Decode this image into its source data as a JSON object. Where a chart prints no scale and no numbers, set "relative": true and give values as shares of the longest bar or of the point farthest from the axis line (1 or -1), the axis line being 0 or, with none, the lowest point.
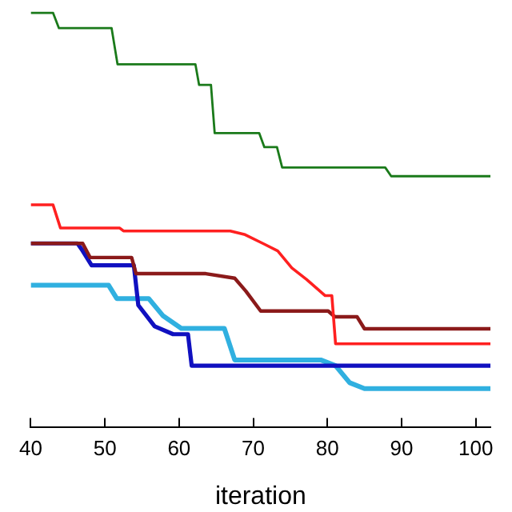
{
  "chart_data": {
    "type": "line",
    "xlabel": "iteration",
    "relative": true,
    "xlim": [
      40,
      102
    ],
    "xticks": [
      40,
      50,
      60,
      70,
      80,
      90,
      100
    ],
    "grid": false,
    "legend": false,
    "marker": "none",
    "line_style": "solid",
    "series": [
      {
        "color": "#1a7a1a",
        "x": [
          40,
          43,
          43.8,
          50.9,
          51.7,
          62.2,
          62.7,
          64.3,
          64.8,
          70.8,
          71.5,
          73.2,
          73.9,
          87.8,
          88.6,
          102
        ],
        "values": [
          1,
          1,
          0.963,
          0.963,
          0.876,
          0.876,
          0.826,
          0.826,
          0.71,
          0.71,
          0.676,
          0.676,
          0.627,
          0.627,
          0.606,
          0.606
        ]
      },
      {
        "color": "#ff2020",
        "x": [
          40,
          43,
          44,
          52,
          52.5,
          66.9,
          68.9,
          71.4,
          73.3,
          75.2,
          77.2,
          79.7,
          80.6,
          81.1,
          102
        ],
        "values": [
          0.537,
          0.537,
          0.481,
          0.481,
          0.474,
          0.474,
          0.465,
          0.443,
          0.426,
          0.385,
          0.357,
          0.318,
          0.318,
          0.202,
          0.202
        ]
      },
      {
        "color": "#8b1a1a",
        "x": [
          40,
          47,
          48,
          53.6,
          54.2,
          63.6,
          67.5,
          69,
          71,
          80.1,
          81,
          84,
          85,
          102
        ],
        "values": [
          0.444,
          0.444,
          0.41,
          0.41,
          0.371,
          0.371,
          0.36,
          0.329,
          0.281,
          0.281,
          0.267,
          0.267,
          0.238,
          0.238
        ]
      },
      {
        "color": "#1010c0",
        "x": [
          40,
          46.3,
          47,
          48.2,
          53.9,
          54.5,
          56.7,
          59.2,
          61.2,
          61.7,
          102
        ],
        "values": [
          0.444,
          0.444,
          0.426,
          0.391,
          0.391,
          0.295,
          0.244,
          0.225,
          0.225,
          0.149,
          0.149
        ]
      },
      {
        "color": "#30b0e0",
        "x": [
          40,
          50.5,
          51.6,
          55.9,
          57.8,
          60.3,
          66.1,
          67.5,
          79.1,
          81.1,
          83,
          85,
          102
        ],
        "values": [
          0.343,
          0.343,
          0.311,
          0.311,
          0.27,
          0.239,
          0.239,
          0.163,
          0.163,
          0.149,
          0.108,
          0.094,
          0.094
        ]
      }
    ]
  }
}
